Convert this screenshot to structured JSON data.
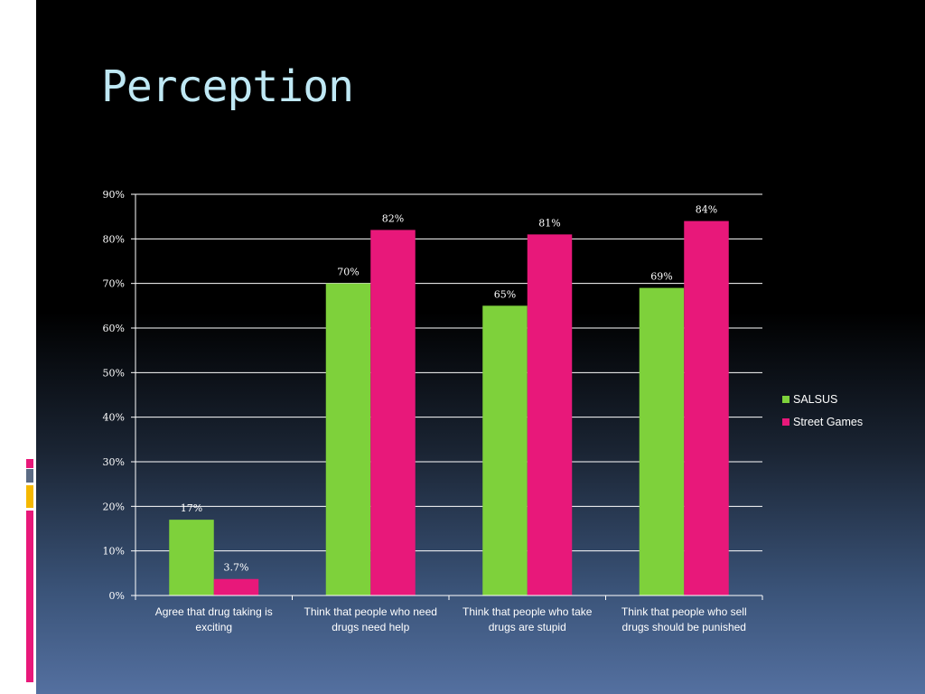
{
  "slide": {
    "title": "Perception"
  },
  "colors": {
    "salsus": "#7ed13b",
    "street_games": "#e8187a",
    "deco": [
      "#e8187a",
      "#5b6b84",
      "#f5b800",
      "#e8187a"
    ]
  },
  "chart_data": {
    "type": "bar",
    "categories": [
      "Agree that drug taking is exciting",
      "Think that people who need drugs need help",
      "Think that people who take drugs are stupid",
      "Think that people who sell drugs should be punished"
    ],
    "category_lines": [
      [
        "Agree that drug taking is",
        "exciting"
      ],
      [
        "Think that people who need",
        "drugs need help"
      ],
      [
        "Think that people who take",
        "drugs are stupid"
      ],
      [
        "Think that people who sell",
        "drugs should be punished"
      ]
    ],
    "series": [
      {
        "name": "SALSUS",
        "values": [
          17,
          70,
          65,
          69
        ],
        "labels": [
          "17%",
          "70%",
          "65%",
          "69%"
        ]
      },
      {
        "name": "Street Games",
        "values": [
          3.7,
          82,
          81,
          84
        ],
        "labels": [
          "3.7%",
          "82%",
          "81%",
          "84%"
        ]
      }
    ],
    "ylim": [
      0,
      90
    ],
    "yticks": [
      "0%",
      "10%",
      "20%",
      "30%",
      "40%",
      "50%",
      "60%",
      "70%",
      "80%",
      "90%"
    ],
    "grid": true,
    "legend_position": "right"
  }
}
